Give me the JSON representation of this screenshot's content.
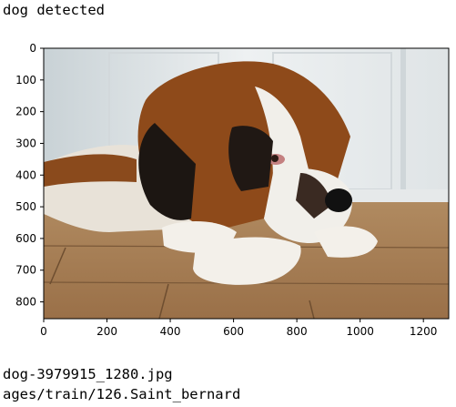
{
  "output": {
    "status_line": "dog detected",
    "filename_line": "dog-3979915_1280.jpg",
    "path_line": "ages/train/126.Saint_bernard"
  },
  "chart_data": {
    "type": "image",
    "title": "",
    "xlabel": "",
    "ylabel": "",
    "xlim": [
      0,
      1280
    ],
    "ylim": [
      853,
      0
    ],
    "x_ticks": [
      0,
      200,
      400,
      600,
      800,
      1000,
      1200
    ],
    "y_ticks": [
      0,
      100,
      200,
      300,
      400,
      500,
      600,
      700,
      800
    ],
    "image_content": "Saint Bernard dog lying on wooden floor",
    "colors": {
      "floor": "#a67e54",
      "wall": "#e8ecee",
      "fur_brown": "#8a4a1c",
      "fur_white": "#f1efea",
      "fur_black": "#1c1612"
    }
  }
}
